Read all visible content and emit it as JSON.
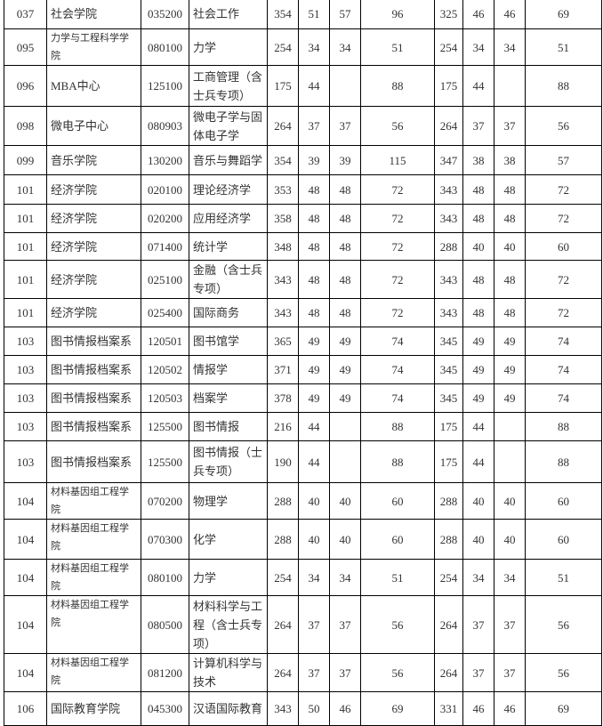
{
  "rows": [
    {
      "code": "037",
      "college": "社会学院",
      "major_code": "035200",
      "major": "社会工作",
      "a_total": "354",
      "a1": "51",
      "a2": "57",
      "a3": "96",
      "b_total": "325",
      "b1": "46",
      "b2": "46",
      "b3": "69"
    },
    {
      "code": "095",
      "college": "力学与工程科学学院",
      "major_code": "080100",
      "major": "力学",
      "a_total": "254",
      "a1": "34",
      "a2": "34",
      "a3": "51",
      "b_total": "254",
      "b1": "34",
      "b2": "34",
      "b3": "51"
    },
    {
      "code": "096",
      "college": "MBA中心",
      "major_code": "125100",
      "major": "工商管理（含士兵专项）",
      "a_total": "175",
      "a1": "44",
      "a2": "",
      "a3": "88",
      "b_total": "175",
      "b1": "44",
      "b2": "",
      "b3": "88"
    },
    {
      "code": "098",
      "college": "微电子中心",
      "major_code": "080903",
      "major": "微电子学与固体电子学",
      "a_total": "264",
      "a1": "37",
      "a2": "37",
      "a3": "56",
      "b_total": "264",
      "b1": "37",
      "b2": "37",
      "b3": "56"
    },
    {
      "code": "099",
      "college": "音乐学院",
      "major_code": "130200",
      "major": "音乐与舞蹈学",
      "a_total": "354",
      "a1": "39",
      "a2": "39",
      "a3": "115",
      "b_total": "347",
      "b1": "38",
      "b2": "38",
      "b3": "57"
    },
    {
      "code": "101",
      "college": "经济学院",
      "major_code": "020100",
      "major": "理论经济学",
      "a_total": "353",
      "a1": "48",
      "a2": "48",
      "a3": "72",
      "b_total": "343",
      "b1": "48",
      "b2": "48",
      "b3": "72"
    },
    {
      "code": "101",
      "college": "经济学院",
      "major_code": "020200",
      "major": "应用经济学",
      "a_total": "358",
      "a1": "48",
      "a2": "48",
      "a3": "72",
      "b_total": "343",
      "b1": "48",
      "b2": "48",
      "b3": "72"
    },
    {
      "code": "101",
      "college": "经济学院",
      "major_code": "071400",
      "major": "统计学",
      "a_total": "348",
      "a1": "48",
      "a2": "48",
      "a3": "72",
      "b_total": "288",
      "b1": "40",
      "b2": "40",
      "b3": "60"
    },
    {
      "code": "101",
      "college": "经济学院",
      "major_code": "025100",
      "major": "金融（含士兵专项）",
      "a_total": "343",
      "a1": "48",
      "a2": "48",
      "a3": "72",
      "b_total": "343",
      "b1": "48",
      "b2": "48",
      "b3": "72"
    },
    {
      "code": "101",
      "college": "经济学院",
      "major_code": "025400",
      "major": "国际商务",
      "a_total": "343",
      "a1": "48",
      "a2": "48",
      "a3": "72",
      "b_total": "343",
      "b1": "48",
      "b2": "48",
      "b3": "72"
    },
    {
      "code": "103",
      "college": "图书情报档案系",
      "major_code": "120501",
      "major": "图书馆学",
      "a_total": "365",
      "a1": "49",
      "a2": "49",
      "a3": "74",
      "b_total": "345",
      "b1": "49",
      "b2": "49",
      "b3": "74"
    },
    {
      "code": "103",
      "college": "图书情报档案系",
      "major_code": "120502",
      "major": "情报学",
      "a_total": "371",
      "a1": "49",
      "a2": "49",
      "a3": "74",
      "b_total": "345",
      "b1": "49",
      "b2": "49",
      "b3": "74"
    },
    {
      "code": "103",
      "college": "图书情报档案系",
      "major_code": "120503",
      "major": "档案学",
      "a_total": "378",
      "a1": "49",
      "a2": "49",
      "a3": "74",
      "b_total": "345",
      "b1": "49",
      "b2": "49",
      "b3": "74"
    },
    {
      "code": "103",
      "college": "图书情报档案系",
      "major_code": "125500",
      "major": "图书情报",
      "a_total": "216",
      "a1": "44",
      "a2": "",
      "a3": "88",
      "b_total": "175",
      "b1": "44",
      "b2": "",
      "b3": "88"
    },
    {
      "code": "103",
      "college": "图书情报档案系",
      "major_code": "125500",
      "major": "图书情报（士兵专项）",
      "a_total": "190",
      "a1": "44",
      "a2": "",
      "a3": "88",
      "b_total": "175",
      "b1": "44",
      "b2": "",
      "b3": "88"
    },
    {
      "code": "104",
      "college": "材料基因组工程学院",
      "major_code": "070200",
      "major": "物理学",
      "a_total": "288",
      "a1": "40",
      "a2": "40",
      "a3": "60",
      "b_total": "288",
      "b1": "40",
      "b2": "40",
      "b3": "60"
    },
    {
      "code": "104",
      "college": "材料基因组工程学院",
      "major_code": "070300",
      "major": "化学",
      "a_total": "288",
      "a1": "40",
      "a2": "40",
      "a3": "60",
      "b_total": "288",
      "b1": "40",
      "b2": "40",
      "b3": "60"
    },
    {
      "code": "104",
      "college": "材料基因组工程学院",
      "major_code": "080100",
      "major": "力学",
      "a_total": "254",
      "a1": "34",
      "a2": "34",
      "a3": "51",
      "b_total": "254",
      "b1": "34",
      "b2": "34",
      "b3": "51"
    },
    {
      "code": "104",
      "college": "材料基因组工程学院",
      "major_code": "080500",
      "major": "材料科学与工程（含士兵专项）",
      "a_total": "264",
      "a1": "37",
      "a2": "37",
      "a3": "56",
      "b_total": "264",
      "b1": "37",
      "b2": "37",
      "b3": "56"
    },
    {
      "code": "104",
      "college": "材料基因组工程学院",
      "major_code": "081200",
      "major": "计算机科学与技术",
      "a_total": "264",
      "a1": "37",
      "a2": "37",
      "a3": "56",
      "b_total": "264",
      "b1": "37",
      "b2": "37",
      "b3": "56"
    },
    {
      "code": "106",
      "college": "国际教育学院",
      "major_code": "045300",
      "major": "汉语国际教育",
      "a_total": "343",
      "a1": "50",
      "a2": "46",
      "a3": "69",
      "b_total": "331",
      "b1": "46",
      "b2": "46",
      "b3": "69"
    }
  ]
}
